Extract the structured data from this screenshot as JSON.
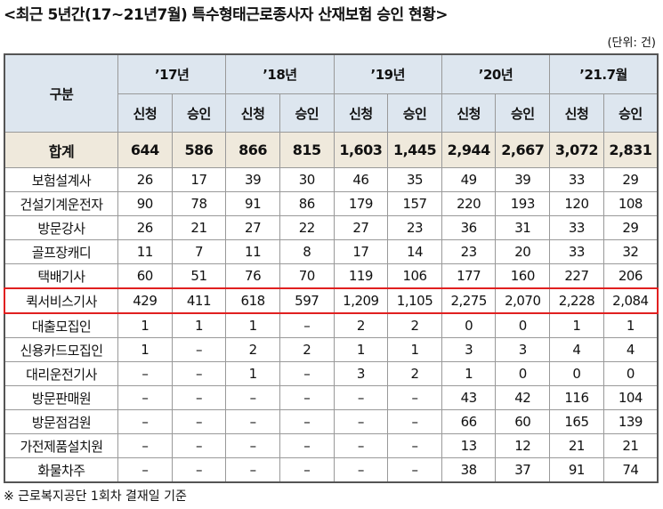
{
  "header": {
    "title": "<최근 5년간(17~21년7월) 특수형태근로종사자 산재보험 승인 현황>",
    "unit": "(단위: 건)"
  },
  "table": {
    "corner": "구분",
    "years": [
      "’17년",
      "’18년",
      "’19년",
      "’20년",
      "’21.7월"
    ],
    "subheaders": [
      "신청",
      "승인",
      "신청",
      "승인",
      "신청",
      "승인",
      "신청",
      "승인",
      "신청",
      "승인"
    ],
    "total": [
      "합계",
      "644",
      "586",
      "866",
      "815",
      "1,603",
      "1,445",
      "2,944",
      "2,667",
      "3,072",
      "2,831"
    ],
    "rows": [
      [
        "보험설계사",
        "26",
        "17",
        "39",
        "30",
        "46",
        "35",
        "49",
        "39",
        "33",
        "29"
      ],
      [
        "건설기계운전자",
        "90",
        "78",
        "91",
        "86",
        "179",
        "157",
        "220",
        "193",
        "120",
        "108"
      ],
      [
        "방문강사",
        "26",
        "21",
        "27",
        "22",
        "27",
        "23",
        "36",
        "31",
        "33",
        "29"
      ],
      [
        "골프장캐디",
        "11",
        "7",
        "11",
        "8",
        "17",
        "14",
        "23",
        "20",
        "33",
        "32"
      ],
      [
        "택배기사",
        "60",
        "51",
        "76",
        "70",
        "119",
        "106",
        "177",
        "160",
        "227",
        "206"
      ],
      [
        "퀵서비스기사",
        "429",
        "411",
        "618",
        "597",
        "1,209",
        "1,105",
        "2,275",
        "2,070",
        "2,228",
        "2,084"
      ],
      [
        "대출모집인",
        "1",
        "1",
        "1",
        "–",
        "2",
        "2",
        "0",
        "0",
        "1",
        "1"
      ],
      [
        "신용카드모집인",
        "1",
        "–",
        "2",
        "2",
        "1",
        "1",
        "3",
        "3",
        "4",
        "4"
      ],
      [
        "대리운전기사",
        "–",
        "–",
        "1",
        "–",
        "3",
        "2",
        "1",
        "0",
        "0",
        "0"
      ],
      [
        "방문판매원",
        "–",
        "–",
        "–",
        "–",
        "–",
        "–",
        "43",
        "42",
        "116",
        "104"
      ],
      [
        "방문점검원",
        "–",
        "–",
        "–",
        "–",
        "–",
        "–",
        "66",
        "60",
        "165",
        "139"
      ],
      [
        "가전제품설치원",
        "–",
        "–",
        "–",
        "–",
        "–",
        "–",
        "13",
        "12",
        "21",
        "21"
      ],
      [
        "화물차주",
        "–",
        "–",
        "–",
        "–",
        "–",
        "–",
        "38",
        "37",
        "91",
        "74"
      ]
    ],
    "highlighted_row": 5
  },
  "footnote": "※ 근로복지공단 1회차 결재일 기준"
}
